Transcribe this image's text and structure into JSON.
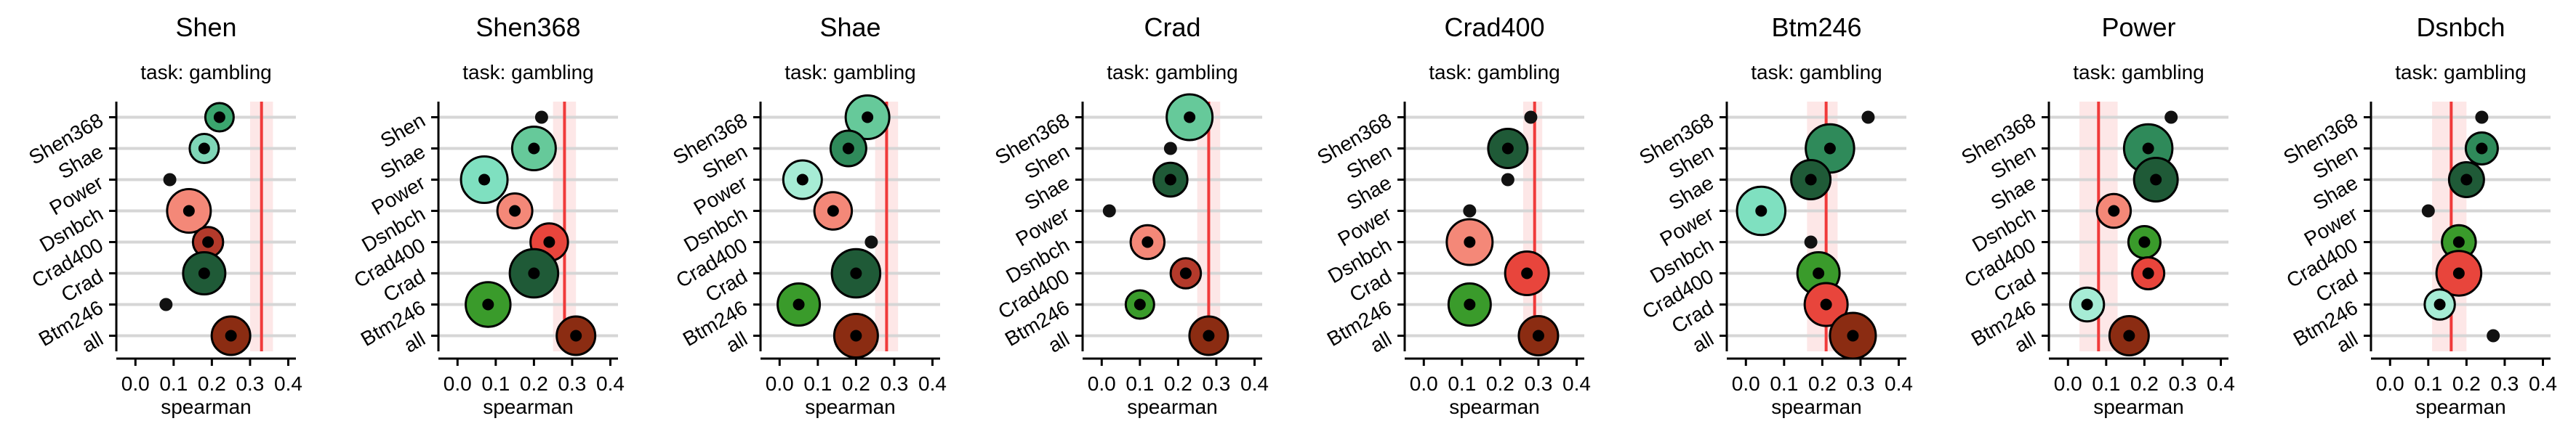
{
  "chart_data": [
    {
      "type": "scatter",
      "title": "Shen",
      "subtitle": "task: gambling",
      "xlabel": "spearman",
      "xlim": [
        -0.05,
        0.42
      ],
      "xticks": [
        "0.0",
        "0.1",
        "0.2",
        "0.3",
        "0.4"
      ],
      "categories": [
        "Shen368",
        "Shae",
        "Power",
        "Dsnbch",
        "Crad400",
        "Crad",
        "Btm246",
        "all"
      ],
      "values": [
        0.22,
        0.18,
        0.09,
        0.14,
        0.19,
        0.18,
        0.08,
        0.25
      ],
      "sizes": [
        0.3,
        0.32,
        0.05,
        0.72,
        0.35,
        0.68,
        0.05,
        0.58
      ],
      "colors": [
        "#3ba56e",
        "#7fd6b7",
        "#111111",
        "#f48878",
        "#b43a2b",
        "#1f5a37",
        "#111111",
        "#8b2c12"
      ],
      "reference_line": 0.33,
      "reference_band": [
        0.3,
        0.36
      ],
      "grid": true
    },
    {
      "type": "scatter",
      "title": "Shen368",
      "subtitle": "task: gambling",
      "xlabel": "spearman",
      "xlim": [
        -0.05,
        0.42
      ],
      "xticks": [
        "0.0",
        "0.1",
        "0.2",
        "0.3",
        "0.4"
      ],
      "categories": [
        "Shen",
        "Shae",
        "Power",
        "Dsnbch",
        "Crad400",
        "Crad",
        "Btm246",
        "all"
      ],
      "values": [
        0.22,
        0.2,
        0.07,
        0.15,
        0.24,
        0.2,
        0.08,
        0.31
      ],
      "sizes": [
        0.05,
        0.72,
        0.8,
        0.48,
        0.55,
        0.85,
        0.75,
        0.58
      ],
      "colors": [
        "#111111",
        "#66c99a",
        "#7fe0c0",
        "#f48878",
        "#e8453c",
        "#1f5a37",
        "#3a9b2b",
        "#8b2c12"
      ],
      "reference_line": 0.28,
      "reference_band": [
        0.25,
        0.31
      ],
      "grid": true
    },
    {
      "type": "scatter",
      "title": "Shae",
      "subtitle": "task: gambling",
      "xlabel": "spearman",
      "xlim": [
        -0.05,
        0.42
      ],
      "xticks": [
        "0.0",
        "0.1",
        "0.2",
        "0.3",
        "0.4"
      ],
      "categories": [
        "Shen368",
        "Shen",
        "Power",
        "Dsnbch",
        "Crad400",
        "Crad",
        "Btm246",
        "all"
      ],
      "values": [
        0.23,
        0.18,
        0.06,
        0.14,
        0.24,
        0.2,
        0.05,
        0.2
      ],
      "sizes": [
        0.72,
        0.5,
        0.58,
        0.55,
        0.05,
        0.85,
        0.68,
        0.72
      ],
      "colors": [
        "#66c99a",
        "#2f8a5a",
        "#a6ecd5",
        "#f48878",
        "#111111",
        "#1f5a37",
        "#3a9b2b",
        "#8b2c12"
      ],
      "reference_line": 0.28,
      "reference_band": [
        0.25,
        0.31
      ],
      "grid": true
    },
    {
      "type": "scatter",
      "title": "Crad",
      "subtitle": "task: gambling",
      "xlabel": "spearman",
      "xlim": [
        -0.05,
        0.42
      ],
      "xticks": [
        "0.0",
        "0.1",
        "0.2",
        "0.3",
        "0.4"
      ],
      "categories": [
        "Shen368",
        "Shen",
        "Shae",
        "Power",
        "Dsnbch",
        "Crad400",
        "Btm246",
        "all"
      ],
      "values": [
        0.23,
        0.18,
        0.18,
        0.02,
        0.12,
        0.22,
        0.1,
        0.28
      ],
      "sizes": [
        0.78,
        0.05,
        0.45,
        0.05,
        0.45,
        0.35,
        0.3,
        0.58
      ],
      "colors": [
        "#66c99a",
        "#111111",
        "#1f5a37",
        "#111111",
        "#f48878",
        "#b43a2b",
        "#3a9b2b",
        "#8b2c12"
      ],
      "reference_line": 0.28,
      "reference_band": [
        0.25,
        0.31
      ],
      "grid": true
    },
    {
      "type": "scatter",
      "title": "Crad400",
      "subtitle": "task: gambling",
      "xlabel": "spearman",
      "xlim": [
        -0.05,
        0.42
      ],
      "xticks": [
        "0.0",
        "0.1",
        "0.2",
        "0.3",
        "0.4"
      ],
      "categories": [
        "Shen368",
        "Shen",
        "Shae",
        "Power",
        "Dsnbch",
        "Crad",
        "Btm246",
        "all"
      ],
      "values": [
        0.28,
        0.22,
        0.22,
        0.12,
        0.12,
        0.27,
        0.12,
        0.3
      ],
      "sizes": [
        0.05,
        0.6,
        0.05,
        0.05,
        0.78,
        0.72,
        0.68,
        0.6
      ],
      "colors": [
        "#111111",
        "#1f5a37",
        "#111111",
        "#111111",
        "#f48878",
        "#e8453c",
        "#3a9b2b",
        "#8b2c12"
      ],
      "reference_line": 0.29,
      "reference_band": [
        0.26,
        0.31
      ],
      "grid": true
    },
    {
      "type": "scatter",
      "title": "Btm246",
      "subtitle": "task: gambling",
      "xlabel": "spearman",
      "xlim": [
        -0.05,
        0.42
      ],
      "xticks": [
        "0.0",
        "0.1",
        "0.2",
        "0.3",
        "0.4"
      ],
      "categories": [
        "Shen368",
        "Shen",
        "Shae",
        "Power",
        "Dsnbch",
        "Crad400",
        "Crad",
        "all"
      ],
      "values": [
        0.32,
        0.22,
        0.17,
        0.04,
        0.17,
        0.19,
        0.21,
        0.28
      ],
      "sizes": [
        0.05,
        0.85,
        0.6,
        0.85,
        0.05,
        0.68,
        0.7,
        0.78
      ],
      "colors": [
        "#111111",
        "#2f8a5a",
        "#1f5a37",
        "#7fe0c0",
        "#111111",
        "#3a9b2b",
        "#e8453c",
        "#8b2c12"
      ],
      "reference_line": 0.21,
      "reference_band": [
        0.16,
        0.24
      ],
      "grid": true
    },
    {
      "type": "scatter",
      "title": "Power",
      "subtitle": "task: gambling",
      "xlabel": "spearman",
      "xlim": [
        -0.05,
        0.42
      ],
      "xticks": [
        "0.0",
        "0.1",
        "0.2",
        "0.3",
        "0.4"
      ],
      "categories": [
        "Shen368",
        "Shen",
        "Shae",
        "Dsnbch",
        "Crad400",
        "Crad",
        "Btm246",
        "all"
      ],
      "values": [
        0.27,
        0.21,
        0.23,
        0.12,
        0.2,
        0.21,
        0.05,
        0.16
      ],
      "sizes": [
        0.05,
        0.85,
        0.72,
        0.45,
        0.4,
        0.4,
        0.45,
        0.6
      ],
      "colors": [
        "#111111",
        "#2f8a5a",
        "#1f5a37",
        "#f48878",
        "#3a9b2b",
        "#e8453c",
        "#a6ecd5",
        "#8b2c12"
      ],
      "reference_line": 0.08,
      "reference_band": [
        0.03,
        0.13
      ],
      "grid": true
    },
    {
      "type": "scatter",
      "title": "Dsnbch",
      "subtitle": "task: gambling",
      "xlabel": "spearman",
      "xlim": [
        -0.05,
        0.42
      ],
      "xticks": [
        "0.0",
        "0.1",
        "0.2",
        "0.3",
        "0.4"
      ],
      "categories": [
        "Shen368",
        "Shen",
        "Shae",
        "Power",
        "Crad400",
        "Crad",
        "Btm246",
        "all"
      ],
      "values": [
        0.24,
        0.24,
        0.2,
        0.1,
        0.18,
        0.18,
        0.13,
        0.27
      ],
      "sizes": [
        0.05,
        0.4,
        0.48,
        0.05,
        0.45,
        0.75,
        0.35,
        0.05
      ],
      "colors": [
        "#111111",
        "#2f8a5a",
        "#1f5a37",
        "#111111",
        "#3a9b2b",
        "#e8453c",
        "#a6ecd5",
        "#111111"
      ],
      "reference_line": 0.16,
      "reference_band": [
        0.11,
        0.2
      ],
      "grid": true
    }
  ]
}
